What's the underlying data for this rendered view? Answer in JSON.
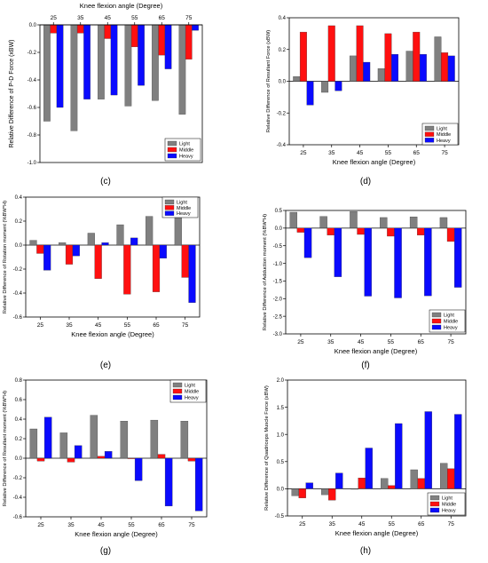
{
  "panel_labels": [
    "(c)",
    "(d)",
    "(e)",
    "(f)",
    "(g)",
    "(h)"
  ],
  "legend": [
    "Light",
    "Middle",
    "Heavy"
  ],
  "colors": {
    "Light": "#808080",
    "Middle": "#ff1010",
    "Heavy": "#0a0aff"
  },
  "chart_data": [
    {
      "type": "bar",
      "categories": [
        "25",
        "35",
        "45",
        "55",
        "65",
        "75"
      ],
      "xlabel": "Knee flexion angle (Degree)",
      "ylabel": "Relative Difference of P-D Force (xBW)",
      "ylim": [
        -1.0,
        0.0
      ],
      "yticks": [
        "-1.0",
        "-0.8",
        "-0.6",
        "-0.4",
        "-0.2",
        "0.0"
      ],
      "ytick_values": [
        -1.0,
        -0.8,
        -0.6,
        -0.4,
        -0.2,
        0.0
      ],
      "xaxis_position": "top",
      "legend_position": "bottom-right",
      "series": [
        {
          "name": "Light",
          "values": [
            -0.7,
            -0.77,
            -0.54,
            -0.59,
            -0.55,
            -0.65
          ]
        },
        {
          "name": "Middle",
          "values": [
            -0.06,
            -0.06,
            -0.1,
            -0.16,
            -0.22,
            -0.25
          ]
        },
        {
          "name": "Heavy",
          "values": [
            -0.6,
            -0.54,
            -0.51,
            -0.44,
            -0.32,
            -0.04
          ]
        }
      ]
    },
    {
      "type": "bar",
      "categories": [
        "25",
        "35",
        "45",
        "55",
        "65",
        "75"
      ],
      "xlabel": "Knee flexion angle (Degree)",
      "ylabel": "Relative Difference of Resultant Force (xBW)",
      "ylim": [
        -0.4,
        0.4
      ],
      "yticks": [
        "-0.4",
        "-0.2",
        "0.0",
        "0.2",
        "0.4"
      ],
      "ytick_values": [
        -0.4,
        -0.2,
        0.0,
        0.2,
        0.4
      ],
      "xaxis_position": "bottom",
      "legend_position": "bottom-right",
      "series": [
        {
          "name": "Light",
          "values": [
            0.03,
            -0.07,
            0.16,
            0.08,
            0.19,
            0.28
          ]
        },
        {
          "name": "Middle",
          "values": [
            0.31,
            0.35,
            0.35,
            0.3,
            0.31,
            0.18
          ]
        },
        {
          "name": "Heavy",
          "values": [
            -0.15,
            -0.06,
            0.12,
            0.17,
            0.17,
            0.16
          ]
        }
      ]
    },
    {
      "type": "bar",
      "categories": [
        "25",
        "35",
        "45",
        "55",
        "65",
        "75"
      ],
      "xlabel": "Knee flexion angle (Degree)",
      "ylabel": "Relative Difference of Rotation moment (%BW*H)",
      "ylim": [
        -0.6,
        0.4
      ],
      "yticks": [
        "-0.6",
        "-0.4",
        "-0.2",
        "0.0",
        "0.2",
        "0.4"
      ],
      "ytick_values": [
        -0.6,
        -0.4,
        -0.2,
        0.0,
        0.2,
        0.4
      ],
      "xaxis_position": "bottom",
      "legend_position": "top-right",
      "series": [
        {
          "name": "Light",
          "values": [
            0.04,
            0.02,
            0.1,
            0.17,
            0.24,
            0.31
          ]
        },
        {
          "name": "Middle",
          "values": [
            -0.07,
            -0.16,
            -0.28,
            -0.41,
            -0.39,
            -0.27
          ]
        },
        {
          "name": "Heavy",
          "values": [
            -0.21,
            -0.09,
            0.02,
            0.06,
            -0.11,
            -0.48
          ]
        }
      ]
    },
    {
      "type": "bar",
      "categories": [
        "25",
        "35",
        "45",
        "55",
        "65",
        "75"
      ],
      "xlabel": "Knee flexion angle (Degree)",
      "ylabel": "Relative Difference of Adduction moment (%BW*H)",
      "ylim": [
        -3.0,
        0.5
      ],
      "yticks": [
        "-3.0",
        "-2.5",
        "-2.0",
        "-1.5",
        "-1.0",
        "-0.5",
        "0.0",
        "0.5"
      ],
      "ytick_values": [
        -3.0,
        -2.5,
        -2.0,
        -1.5,
        -1.0,
        -0.5,
        0.0,
        0.5
      ],
      "xaxis_position": "bottom",
      "legend_position": "bottom-right",
      "series": [
        {
          "name": "Light",
          "values": [
            0.45,
            0.33,
            0.47,
            0.3,
            0.32,
            0.3
          ]
        },
        {
          "name": "Middle",
          "values": [
            -0.12,
            -0.2,
            -0.18,
            -0.23,
            -0.2,
            -0.38
          ]
        },
        {
          "name": "Heavy",
          "values": [
            -0.84,
            -1.38,
            -1.93,
            -1.98,
            -1.92,
            -1.68
          ]
        }
      ]
    },
    {
      "type": "bar",
      "categories": [
        "25",
        "35",
        "45",
        "55",
        "65",
        "75"
      ],
      "xlabel": "Knee flexion angle (Degree)",
      "ylabel": "Relative Difference of Resultant moment (%BW*H)",
      "ylim": [
        -0.6,
        0.8
      ],
      "yticks": [
        "-0.6",
        "-0.4",
        "-0.2",
        "0.0",
        "0.2",
        "0.4",
        "0.6",
        "0.8"
      ],
      "ytick_values": [
        -0.6,
        -0.4,
        -0.2,
        0.0,
        0.2,
        0.4,
        0.6,
        0.8
      ],
      "xaxis_position": "bottom",
      "legend_position": "top-right",
      "series": [
        {
          "name": "Light",
          "values": [
            0.3,
            0.26,
            0.44,
            0.38,
            0.39,
            0.38
          ]
        },
        {
          "name": "Middle",
          "values": [
            -0.03,
            -0.04,
            0.02,
            0.0,
            0.04,
            -0.03
          ]
        },
        {
          "name": "Heavy",
          "values": [
            0.42,
            0.13,
            0.07,
            -0.23,
            -0.49,
            -0.54
          ]
        }
      ]
    },
    {
      "type": "bar",
      "categories": [
        "25",
        "35",
        "45",
        "55",
        "65",
        "75"
      ],
      "xlabel": "Knee flexion angle (Degree)",
      "ylabel": "Relative Difference of Quadriceps Muscle Force (xBW)",
      "ylim": [
        -0.5,
        2.0
      ],
      "yticks": [
        "-0.5",
        "0.0",
        "0.5",
        "1.0",
        "1.5",
        "2.0"
      ],
      "ytick_values": [
        -0.5,
        0.0,
        0.5,
        1.0,
        1.5,
        2.0
      ],
      "xaxis_position": "bottom",
      "legend_position": "bottom-right",
      "series": [
        {
          "name": "Light",
          "values": [
            -0.13,
            -0.11,
            0.0,
            0.19,
            0.35,
            0.47
          ]
        },
        {
          "name": "Middle",
          "values": [
            -0.17,
            -0.21,
            0.2,
            0.06,
            0.19,
            0.37
          ]
        },
        {
          "name": "Heavy",
          "values": [
            0.11,
            0.29,
            0.75,
            1.2,
            1.42,
            1.37
          ]
        }
      ]
    }
  ]
}
